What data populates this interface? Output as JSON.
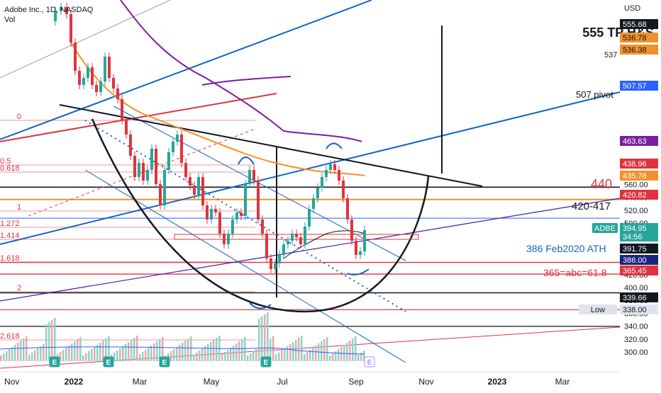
{
  "header": {
    "title": "Adobe Inc., 1D, NASDAQ",
    "sub": "Vol"
  },
  "chart_data": {
    "type": "candlestick",
    "currency": "USD",
    "x_ticks": [
      "Nov",
      "2022",
      "Mar",
      "May",
      "Jul",
      "Sep",
      "Nov",
      "2023",
      "Mar"
    ],
    "y_ticks": [
      300,
      320,
      340,
      360,
      380,
      400,
      420,
      440,
      460,
      480,
      500,
      520,
      540,
      560
    ],
    "price_badges": [
      {
        "value": "555.68",
        "bg": "#131722",
        "fg": "#ffffff"
      },
      {
        "value": "536.78",
        "bg": "#f0922b",
        "fg": "#131722"
      },
      {
        "value": "536.38",
        "bg": "#f0922b",
        "fg": "#131722"
      },
      {
        "value": "507.57",
        "bg": "#2962ff",
        "fg": "#ffffff"
      },
      {
        "value": "463.63",
        "bg": "#7b1fa2",
        "fg": "#ffffff"
      },
      {
        "value": "438.96",
        "bg": "#e0333f",
        "fg": "#ffffff"
      },
      {
        "value": "435.78",
        "bg": "#f0922b",
        "fg": "#ffffff"
      },
      {
        "value": "420.82",
        "bg": "#e0333f",
        "fg": "#ffffff"
      },
      {
        "value": "394.95",
        "bg": "#26a69a",
        "fg": "#ffffff"
      },
      {
        "value": "34:56",
        "bg": "#26a69a",
        "fg": "#ffffff"
      },
      {
        "value": "391.75",
        "bg": "#131722",
        "fg": "#ffffff"
      },
      {
        "value": "386.00",
        "bg": "#1a237e",
        "fg": "#ffffff"
      },
      {
        "value": "365.45",
        "bg": "#e0333f",
        "fg": "#ffffff"
      },
      {
        "value": "339.66",
        "bg": "#131722",
        "fg": "#ffffff"
      }
    ],
    "symbol_badge": "ADBE",
    "low_badge": {
      "label": "Low",
      "value": "338.00"
    },
    "annotations": [
      {
        "text": "555 TP H&S",
        "color": "#131722"
      },
      {
        "text": "537",
        "color": "#131722"
      },
      {
        "text": "507 pivot",
        "color": "#131722"
      },
      {
        "text": "440",
        "color": "#e0333f"
      },
      {
        "text": "420-417",
        "color": "#131722"
      },
      {
        "text": "386 Feb2020 ATH",
        "color": "#1565c0"
      },
      {
        "text": "365=abc=61.8",
        "color": "#e0333f"
      }
    ],
    "fib_labels": [
      "0",
      "0.5",
      "0.618",
      "1",
      "1.272",
      "1.414",
      "1.618",
      "2",
      "2.618"
    ],
    "event_markers": [
      "E",
      "E",
      "E",
      "E",
      "E"
    ],
    "colors": {
      "up": "#26a69a",
      "down": "#e0333f",
      "ma_orange": "#f0922b",
      "ma_purple": "#7b1fa2",
      "trend_blue": "#1565c0",
      "fib_red": "#e0333f"
    }
  }
}
